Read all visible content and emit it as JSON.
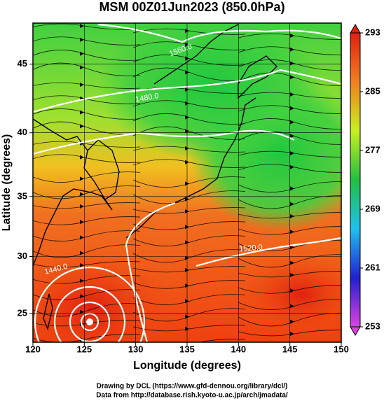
{
  "chart_data": {
    "type": "map",
    "title": "MSM 00Z01Jun2023 (850.0hPa)",
    "xlabel": "Longitude (degrees)",
    "ylabel": "Latitude (degrees)",
    "xlim": [
      120,
      150
    ],
    "xticks": [
      120,
      125,
      130,
      135,
      140,
      145,
      150
    ],
    "ylim": [
      22.4,
      47.8
    ],
    "yticks": [
      25,
      30,
      35,
      40,
      45
    ],
    "projection": "mercator",
    "contour_labels": [
      "1560.0",
      "1520.0",
      "1440.0",
      "1480.0"
    ],
    "colorbar": {
      "lim": [
        253,
        293
      ],
      "ticks": [
        253,
        261,
        269,
        277,
        285,
        293
      ],
      "colors": [
        "#e040e0",
        "#2020d0",
        "#20c0f0",
        "#20c040",
        "#c8f020",
        "#f08020",
        "#e02010"
      ]
    },
    "credits": [
      "Drawing by DCL (https://www.gfd-dennou.org/library/dcl/)",
      "Data from http://database.rish.kyoto-u.ac.jp/arch/jmadata/"
    ]
  }
}
